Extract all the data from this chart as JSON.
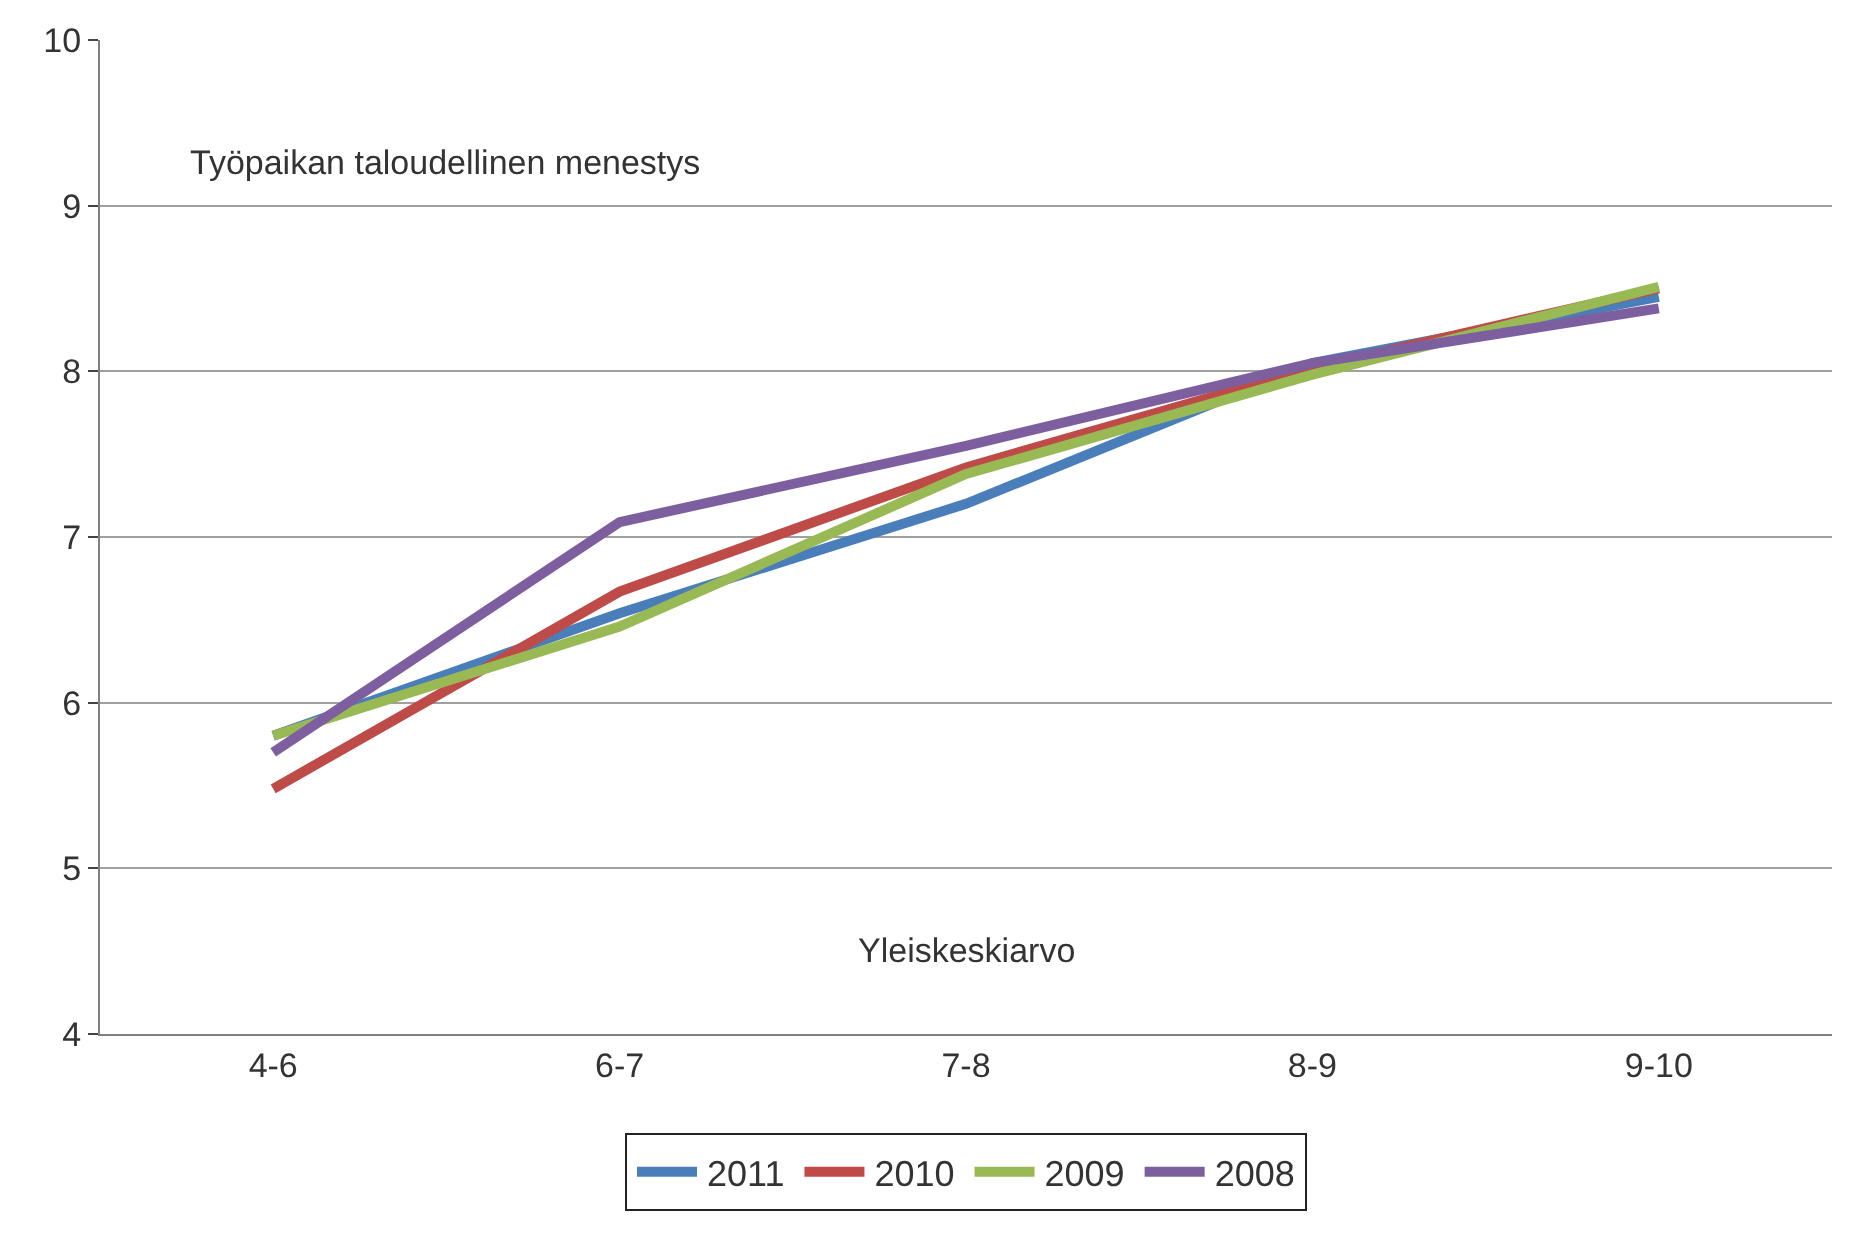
{
  "chart_data": {
    "type": "line",
    "categories": [
      "4-6",
      "6-7",
      "7-8",
      "8-9",
      "9-10"
    ],
    "series": [
      {
        "name": "2011",
        "color": "#4a7ebb",
        "values": [
          5.8,
          6.54,
          7.2,
          8.05,
          8.45
        ]
      },
      {
        "name": "2010",
        "color": "#be4b48",
        "values": [
          5.48,
          6.67,
          7.42,
          8.02,
          8.5
        ]
      },
      {
        "name": "2009",
        "color": "#98b954",
        "values": [
          5.8,
          6.46,
          7.38,
          7.98,
          8.51
        ]
      },
      {
        "name": "2008",
        "color": "#7d5fa0",
        "values": [
          5.7,
          7.09,
          7.55,
          8.05,
          8.38
        ]
      }
    ],
    "annotations": [
      "Työpaikan taloudellinen menestys",
      "Yleiskeskiarvo"
    ],
    "ylim": [
      4,
      10
    ],
    "yticks": [
      4,
      5,
      6,
      7,
      8,
      9,
      10
    ],
    "grid": "y",
    "legend": "bottom",
    "marker": "none",
    "line_style": "solid"
  }
}
